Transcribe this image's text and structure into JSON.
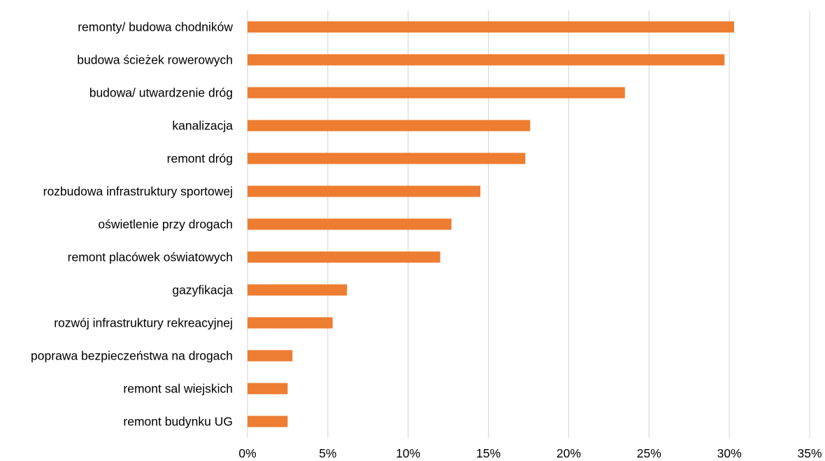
{
  "chart_data": {
    "type": "bar",
    "orientation": "horizontal",
    "title": "",
    "xlabel": "",
    "ylabel": "",
    "categories": [
      "remonty/ budowa chodników",
      "budowa ścieżek rowerowych",
      "budowa/ utwardzenie dróg",
      "kanalizacja",
      "remont dróg",
      "rozbudowa infrastruktury sportowej",
      "oświetlenie przy drogach",
      "remont placówek oświatowych",
      "gazyfikacja",
      "rozwój infrastruktury rekreacyjnej",
      "poprawa bezpieczeństwa na drogach",
      "remont sal wiejskich",
      "remont budynku UG"
    ],
    "values": [
      30.3,
      29.7,
      23.5,
      17.6,
      17.3,
      14.5,
      12.7,
      12.0,
      6.2,
      5.3,
      2.8,
      2.5,
      2.5
    ],
    "value_unit": "%",
    "xlim": [
      0,
      35
    ],
    "x_ticks": [
      0,
      5,
      10,
      15,
      20,
      25,
      30,
      35
    ],
    "x_tick_labels": [
      "0%",
      "5%",
      "10%",
      "15%",
      "20%",
      "25%",
      "30%",
      "35%"
    ],
    "grid": "vertical",
    "legend": "none",
    "bar_color": "#ed7d31",
    "gridline_color": "#d9d9d9"
  }
}
